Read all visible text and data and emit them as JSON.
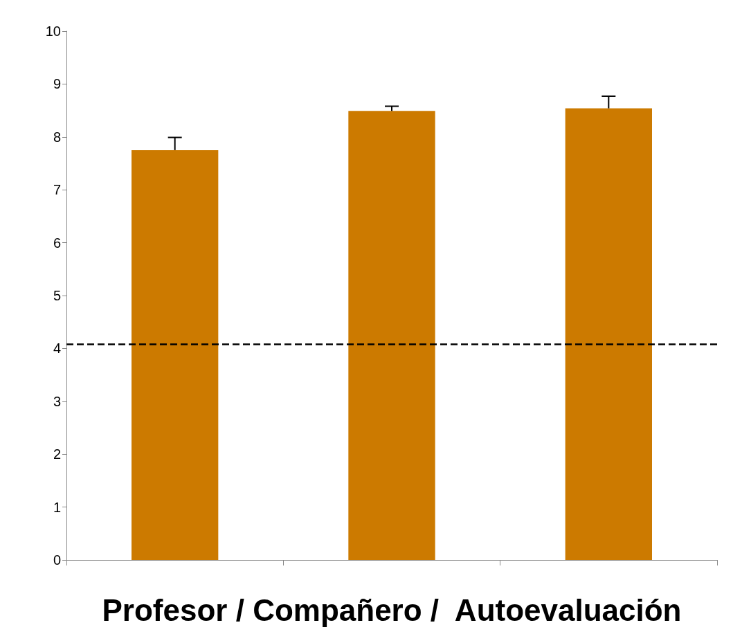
{
  "chart_data": {
    "type": "bar",
    "xlabel": "Profesor / Compañero /  Autoevaluación",
    "categories": [
      null,
      null,
      null
    ],
    "values": [
      7.75,
      8.49,
      8.54
    ],
    "color": "#cc7a00",
    "errors": [
      [
        7.75,
        7.99
      ],
      [
        8.49,
        8.58
      ],
      [
        8.54,
        8.77
      ]
    ],
    "ylim": [
      0,
      10
    ],
    "yticks": [
      0,
      1,
      2,
      3,
      4,
      5,
      6,
      7,
      8,
      9,
      10
    ],
    "grid": false,
    "ref_lines": [
      {
        "axis": "y",
        "value": 4.08,
        "color": "#000000",
        "line_style": "dashed"
      }
    ]
  }
}
